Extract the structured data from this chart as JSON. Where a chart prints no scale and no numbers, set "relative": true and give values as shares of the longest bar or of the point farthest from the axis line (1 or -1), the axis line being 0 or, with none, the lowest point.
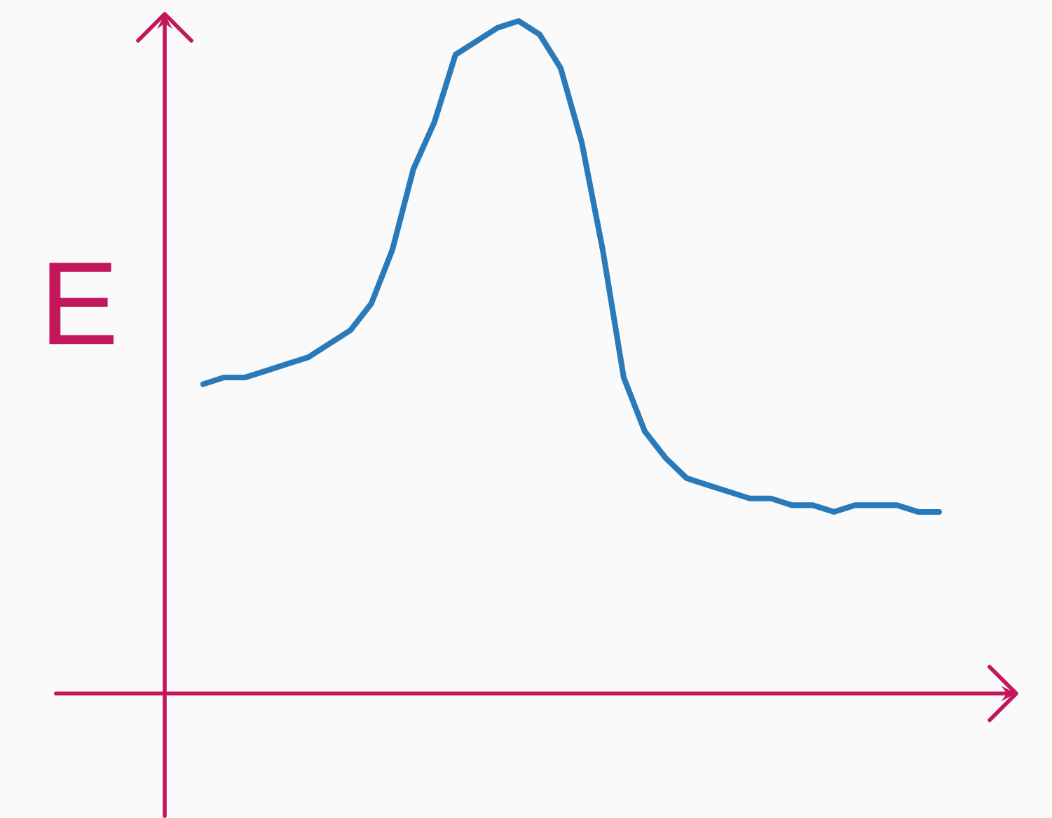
{
  "chart_data": {
    "type": "line",
    "relative": true,
    "ylabel": "E",
    "categories": [
      null,
      null,
      null,
      null,
      null,
      null,
      null,
      null,
      null,
      null,
      null,
      null,
      null,
      null,
      null,
      null,
      null,
      null,
      null,
      null,
      null,
      null,
      null,
      null,
      null,
      null,
      null,
      null,
      null,
      null,
      null,
      null,
      null,
      null,
      null,
      null
    ],
    "series": [
      {
        "color": "#2a7ab9",
        "values": [
          0.46,
          0.47,
          0.47,
          0.48,
          0.49,
          0.5,
          0.52,
          0.54,
          0.58,
          0.66,
          0.78,
          0.85,
          0.95,
          0.97,
          0.99,
          1.0,
          0.98,
          0.93,
          0.82,
          0.66,
          0.47,
          0.39,
          0.35,
          0.32,
          0.31,
          0.3,
          0.29,
          0.29,
          0.28,
          0.28,
          0.27,
          0.28,
          0.28,
          0.28,
          0.27,
          0.27
        ]
      }
    ]
  }
}
